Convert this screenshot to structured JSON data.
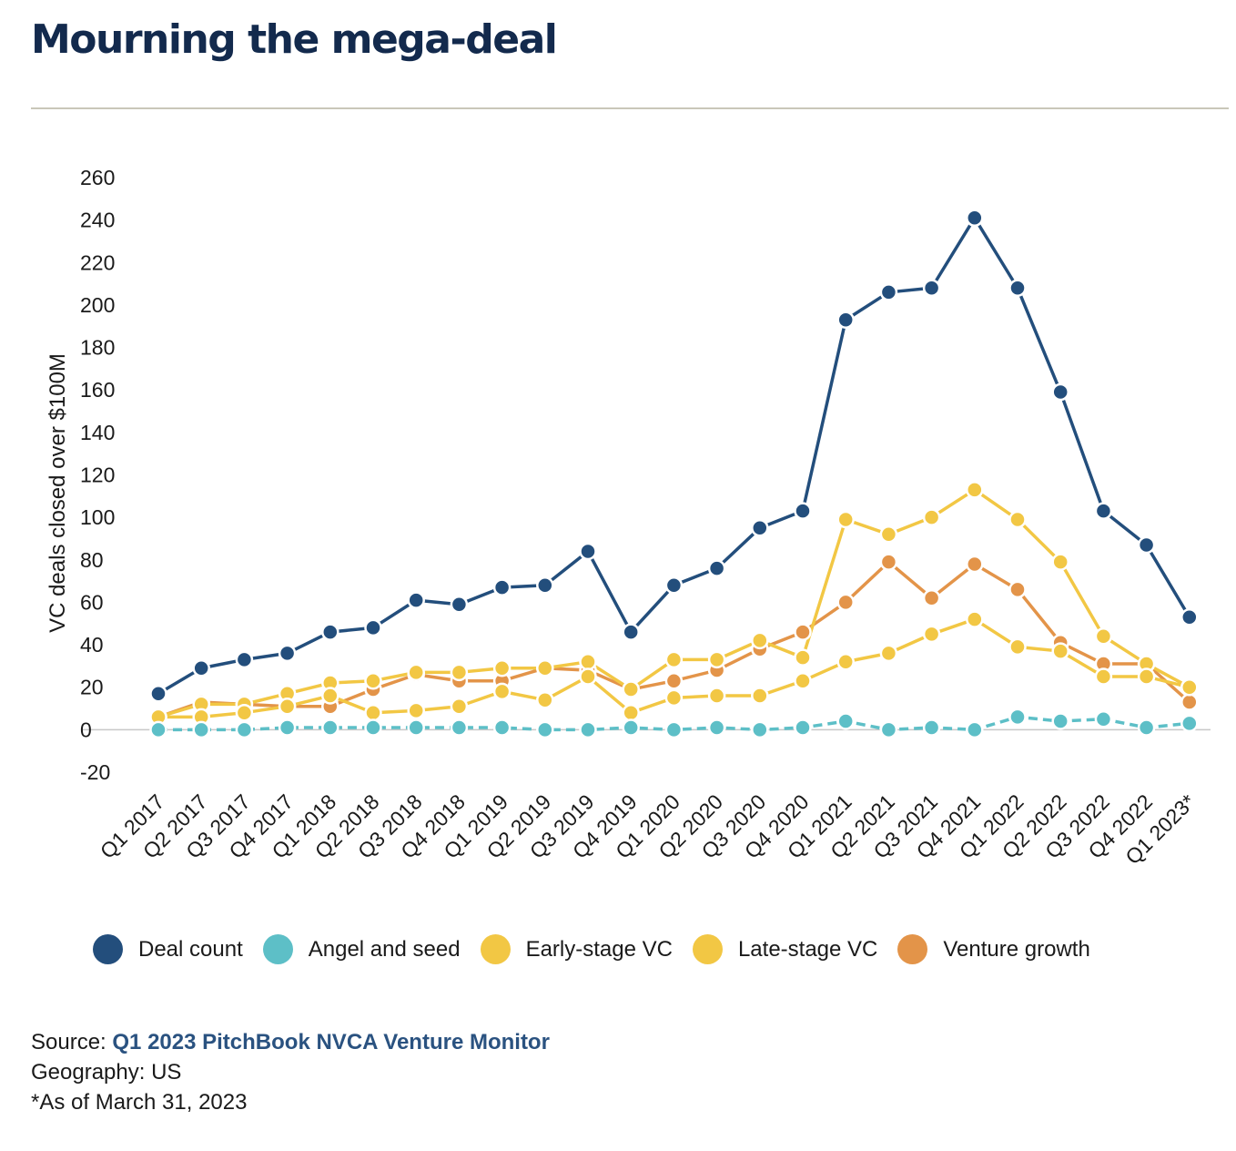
{
  "page": {
    "title": "Mourning the mega-deal"
  },
  "chart_data": {
    "type": "line",
    "title": "Mourning the mega-deal",
    "xlabel": "",
    "ylabel": "VC deals closed over $100M",
    "ylim": [
      -20,
      260
    ],
    "yticks": [
      -20,
      0,
      20,
      40,
      60,
      80,
      100,
      120,
      140,
      160,
      180,
      200,
      220,
      240,
      260
    ],
    "grid": false,
    "legend_position": "bottom",
    "categories": [
      "Q1 2017",
      "Q2 2017",
      "Q3 2017",
      "Q4 2017",
      "Q1 2018",
      "Q2 2018",
      "Q3 2018",
      "Q4 2018",
      "Q1 2019",
      "Q2 2019",
      "Q3 2019",
      "Q4 2019",
      "Q1 2020",
      "Q2 2020",
      "Q3 2020",
      "Q4 2020",
      "Q1 2021",
      "Q2 2021",
      "Q3 2021",
      "Q4 2021",
      "Q1 2022",
      "Q2 2022",
      "Q3 2022",
      "Q4 2022",
      "Q1 2023*"
    ],
    "series": [
      {
        "name": "Deal count",
        "color": "#234e7c",
        "values": [
          17,
          29,
          33,
          36,
          46,
          48,
          61,
          59,
          67,
          68,
          84,
          46,
          68,
          76,
          95,
          103,
          193,
          206,
          208,
          241,
          208,
          159,
          103,
          87,
          53
        ]
      },
      {
        "name": "Angel and seed",
        "color": "#5dbfc7",
        "values": [
          0,
          0,
          0,
          1,
          1,
          1,
          1,
          1,
          1,
          0,
          0,
          1,
          0,
          1,
          0,
          1,
          4,
          0,
          1,
          0,
          6,
          4,
          5,
          1,
          3
        ]
      },
      {
        "name": "Early-stage VC",
        "color": "#f2c744",
        "values": [
          6,
          6,
          8,
          11,
          16,
          8,
          9,
          11,
          18,
          14,
          25,
          8,
          15,
          16,
          16,
          23,
          32,
          36,
          45,
          52,
          39,
          37,
          25,
          25,
          20
        ]
      },
      {
        "name": "Late-stage VC",
        "color": "#f2c744",
        "values": [
          6,
          12,
          12,
          17,
          22,
          23,
          27,
          27,
          29,
          29,
          32,
          19,
          33,
          33,
          42,
          34,
          99,
          92,
          100,
          113,
          99,
          79,
          44,
          31,
          20
        ]
      },
      {
        "name": "Venture growth",
        "color": "#e39449",
        "values": [
          6,
          13,
          12,
          11,
          11,
          19,
          26,
          23,
          23,
          29,
          28,
          19,
          23,
          28,
          38,
          46,
          60,
          79,
          62,
          78,
          66,
          41,
          31,
          31,
          13
        ]
      }
    ]
  },
  "legend": {
    "items": [
      {
        "label": "Deal count",
        "color": "#234e7c"
      },
      {
        "label": "Angel and seed",
        "color": "#5dbfc7"
      },
      {
        "label": "Early-stage VC",
        "color": "#f2c744"
      },
      {
        "label": "Late-stage VC",
        "color": "#f2c744"
      },
      {
        "label": "Venture growth",
        "color": "#e39449"
      }
    ]
  },
  "footer": {
    "source_prefix": "Source: ",
    "source_link": "Q1 2023 PitchBook NVCA Venture Monitor",
    "geography": "Geography: US",
    "note": "*As of March 31, 2023"
  }
}
